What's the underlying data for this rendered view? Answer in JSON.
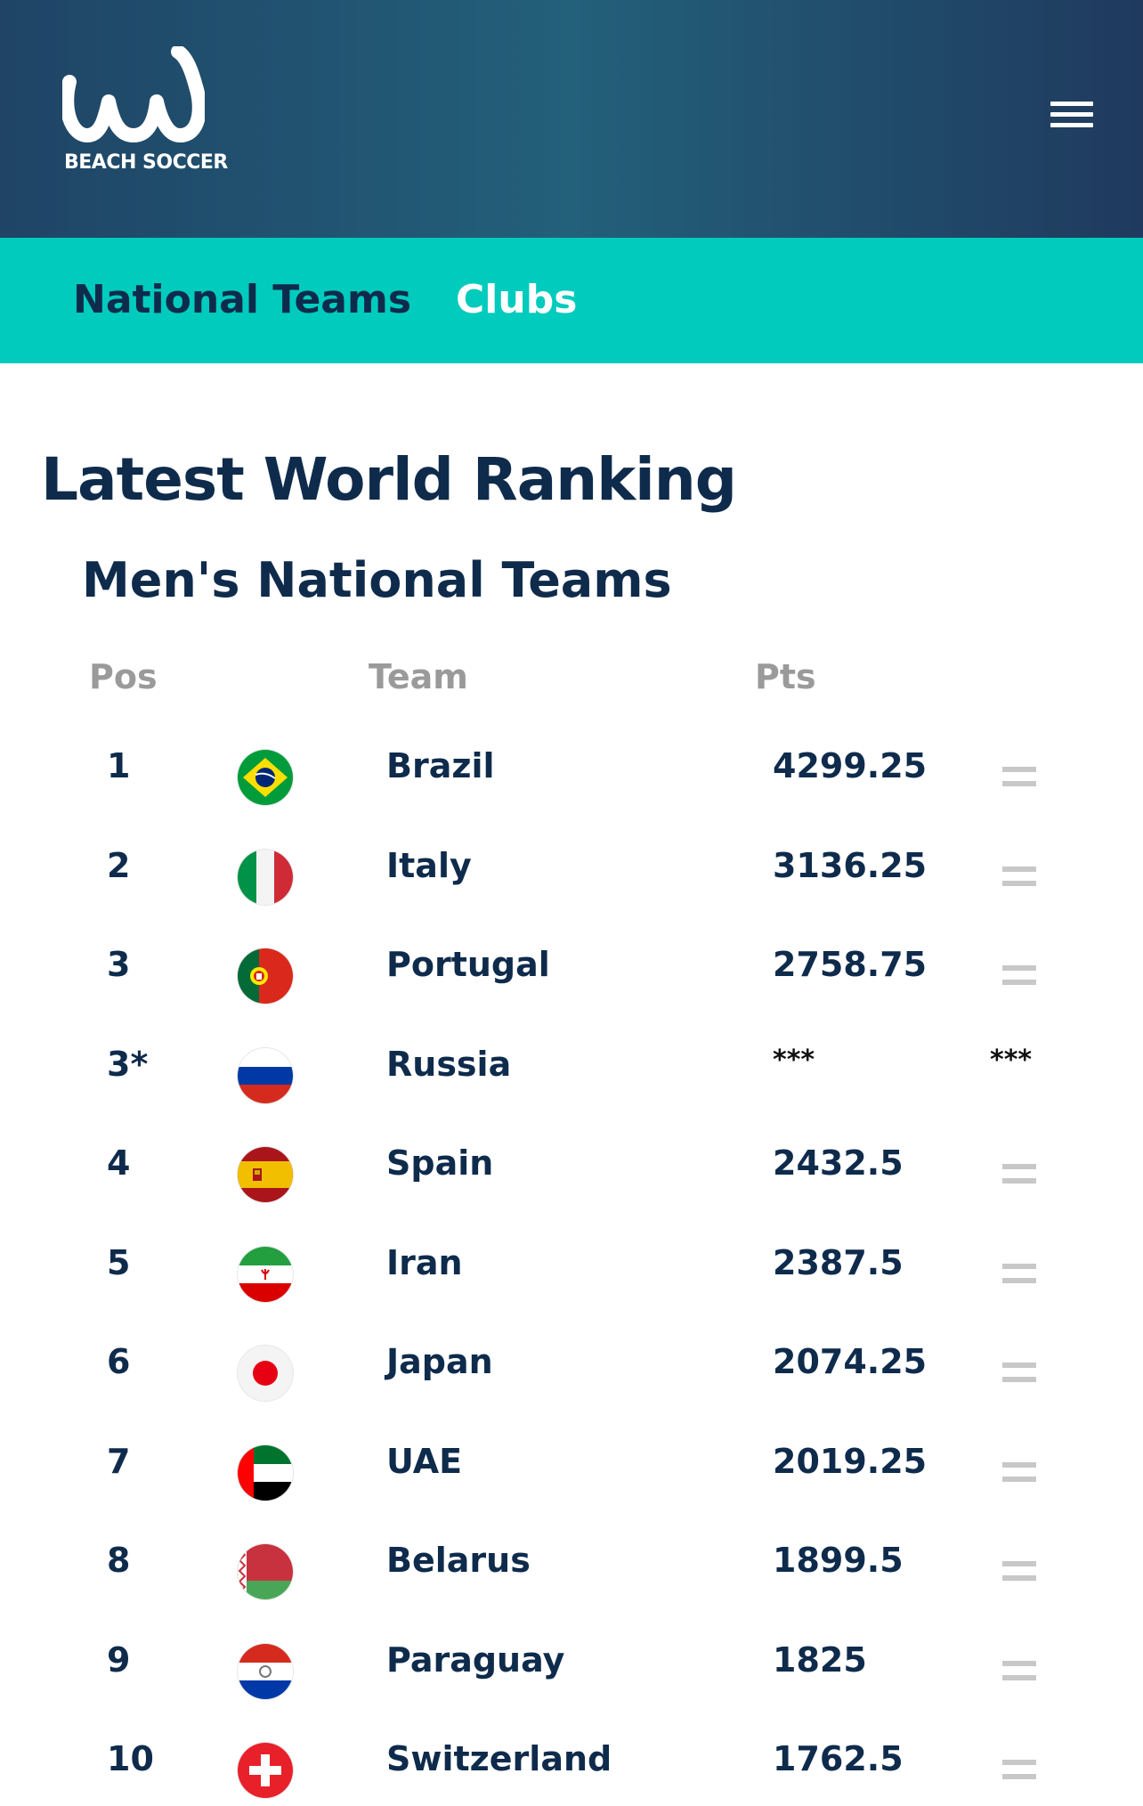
{
  "header": {
    "logo_text": "BEACH SOCCER",
    "menu_icon": "hamburger-menu-icon"
  },
  "tabs": [
    {
      "label": "National Teams",
      "active": true
    },
    {
      "label": "Clubs",
      "active": false
    }
  ],
  "main": {
    "title": "Latest World Ranking",
    "section_title": "Men's National Teams",
    "columns": {
      "pos": "Pos",
      "team": "Team",
      "pts": "Pts"
    },
    "rows": [
      {
        "pos": "1",
        "team": "Brazil",
        "pts": "4299.25",
        "trend": "=",
        "flag": "brazil-flag-icon"
      },
      {
        "pos": "2",
        "team": "Italy",
        "pts": "3136.25",
        "trend": "=",
        "flag": "italy-flag-icon"
      },
      {
        "pos": "3",
        "team": "Portugal",
        "pts": "2758.75",
        "trend": "=",
        "flag": "portugal-flag-icon"
      },
      {
        "pos": "3*",
        "team": "Russia",
        "pts": "***",
        "trend": "***",
        "flag": "russia-flag-icon"
      },
      {
        "pos": "4",
        "team": "Spain",
        "pts": "2432.5",
        "trend": "=",
        "flag": "spain-flag-icon"
      },
      {
        "pos": "5",
        "team": "Iran",
        "pts": "2387.5",
        "trend": "=",
        "flag": "iran-flag-icon"
      },
      {
        "pos": "6",
        "team": "Japan",
        "pts": "2074.25",
        "trend": "=",
        "flag": "japan-flag-icon"
      },
      {
        "pos": "7",
        "team": "UAE",
        "pts": "2019.25",
        "trend": "=",
        "flag": "uae-flag-icon"
      },
      {
        "pos": "8",
        "team": "Belarus",
        "pts": "1899.5",
        "trend": "=",
        "flag": "belarus-flag-icon"
      },
      {
        "pos": "9",
        "team": "Paraguay",
        "pts": "1825",
        "trend": "=",
        "flag": "paraguay-flag-icon"
      },
      {
        "pos": "10",
        "team": "Switzerland",
        "pts": "1762.5",
        "trend": "=",
        "flag": "switzerland-flag-icon"
      }
    ]
  },
  "colors": {
    "header_dark": "#1f3a5e",
    "header_teal": "#23607a",
    "tab_bar": "#00cbbd",
    "navy_text": "#0f2b4c",
    "column_header": "#9a9a9a",
    "trend_equal": "#c8c8c8"
  }
}
